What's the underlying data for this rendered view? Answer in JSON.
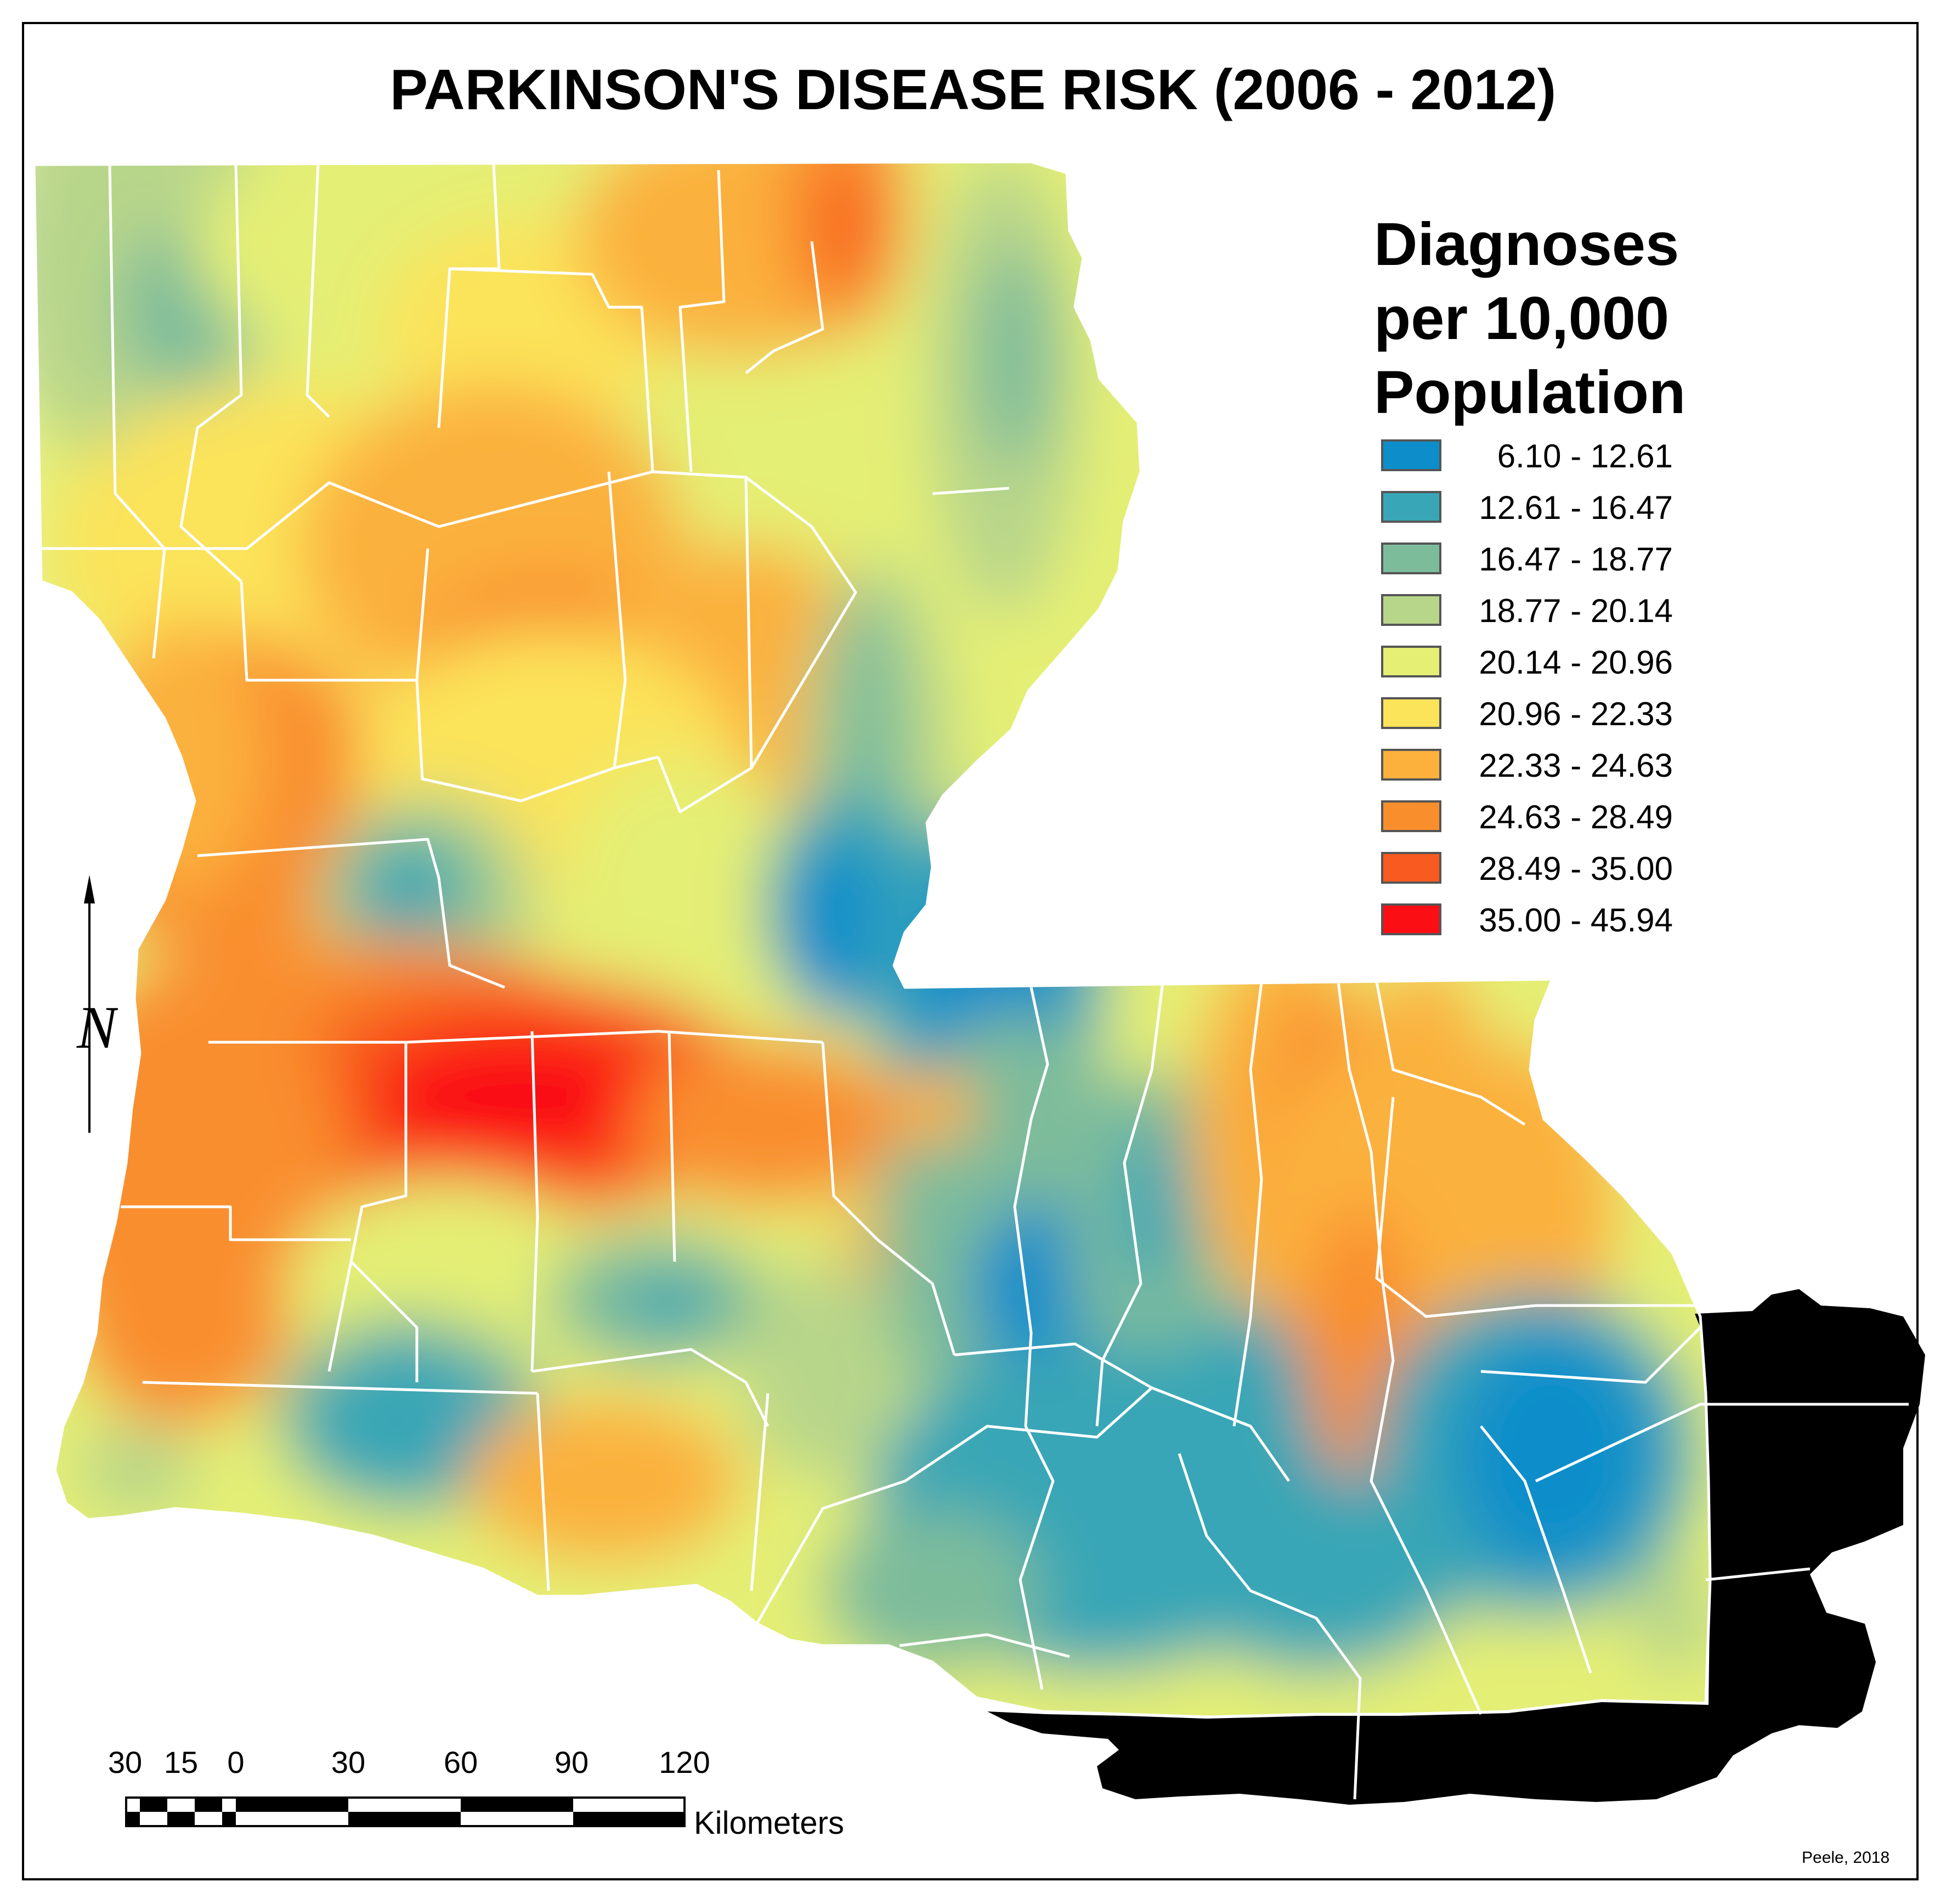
{
  "title": "PARKINSON'S DISEASE RISK (2006 - 2012)",
  "legend": {
    "title_lines": [
      "Diagnoses",
      "per 10,000",
      "Population"
    ],
    "classes": [
      {
        "label": "6.10 - 12.61",
        "color": "#0d8ecb"
      },
      {
        "label": "12.61 - 16.47",
        "color": "#38a6b6"
      },
      {
        "label": "16.47 - 18.77",
        "color": "#7dbc9b"
      },
      {
        "label": "18.77 - 20.14",
        "color": "#b8d68a"
      },
      {
        "label": "20.14 - 20.96",
        "color": "#e4ef74"
      },
      {
        "label": "20.96 - 22.33",
        "color": "#fbe35a"
      },
      {
        "label": "22.33 - 24.63",
        "color": "#fbb13c"
      },
      {
        "label": "24.63 - 28.49",
        "color": "#f98e2d"
      },
      {
        "label": "28.49 - 35.00",
        "color": "#f85a1f"
      },
      {
        "label": "35.00 - 45.94",
        "color": "#fb0e14"
      }
    ],
    "no_data_color": "#6b6b6b"
  },
  "scale": {
    "ticks": [
      "30",
      "15",
      "0",
      "30",
      "60",
      "90",
      "120"
    ],
    "units": "Kilometers"
  },
  "north_symbol": "N",
  "credit": "Peele, 2018"
}
